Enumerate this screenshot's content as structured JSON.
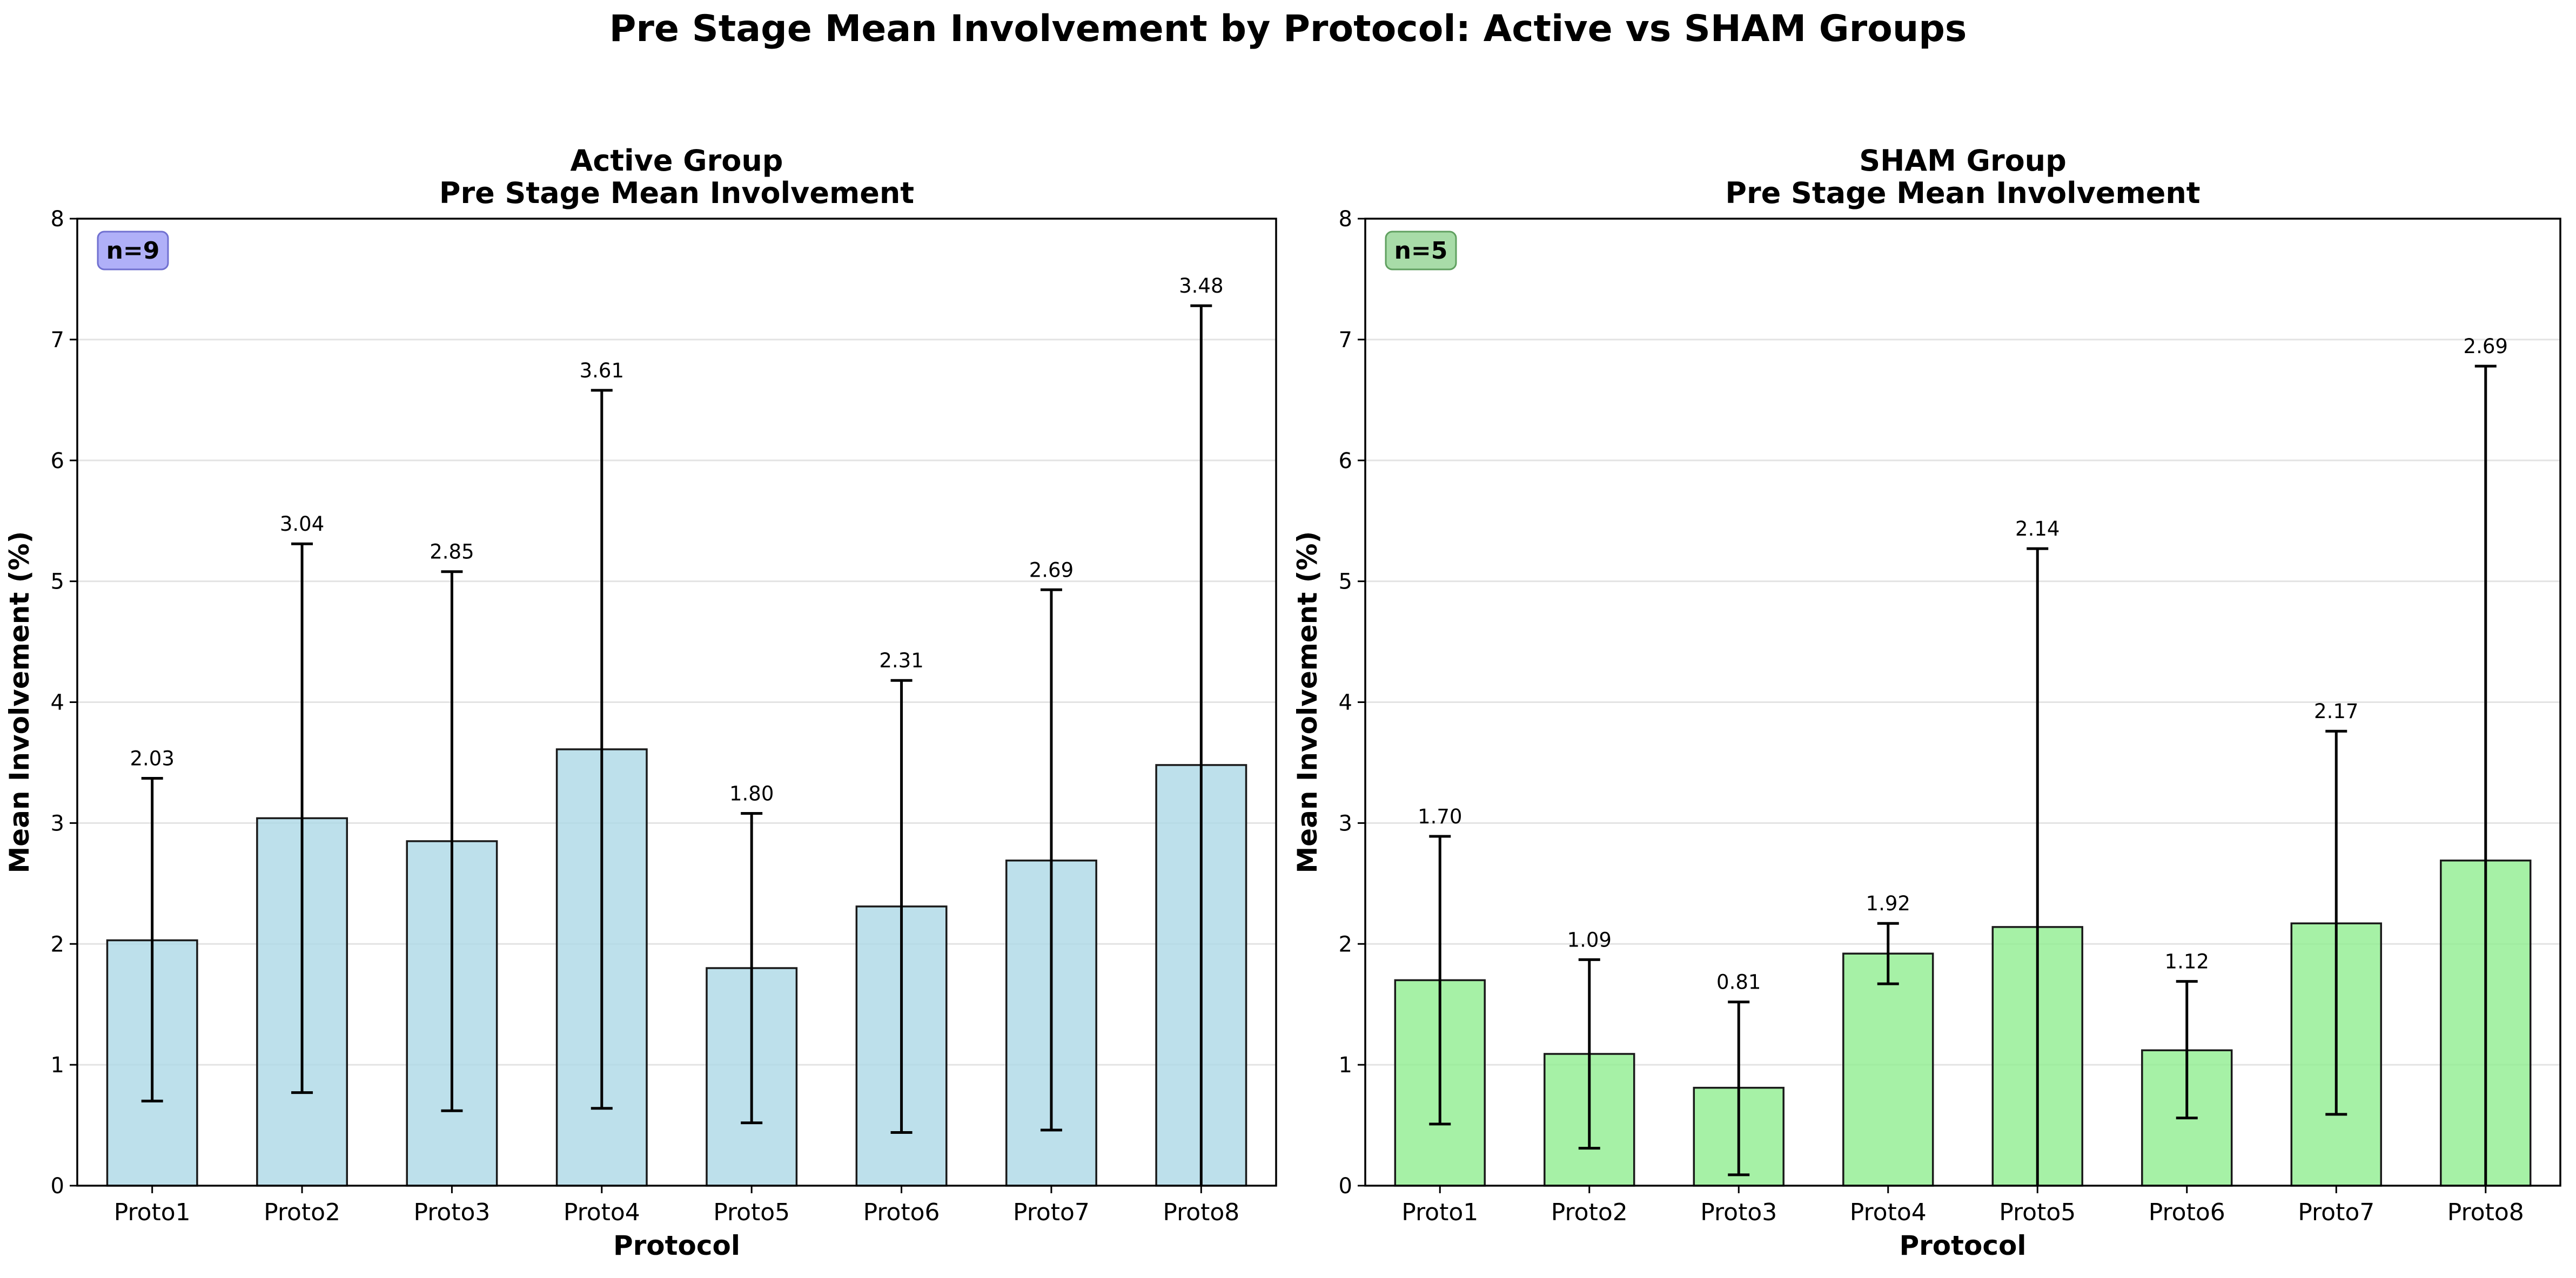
{
  "figure_title": "Pre Stage Mean Involvement by Protocol: Active vs SHAM Groups",
  "chart_data": [
    {
      "type": "bar",
      "title": "Active Group",
      "subtitle": "Pre Stage Mean Involvement",
      "xlabel": "Protocol",
      "ylabel": "Mean Involvement (%)",
      "categories": [
        "Proto1",
        "Proto2",
        "Proto3",
        "Proto4",
        "Proto5",
        "Proto6",
        "Proto7",
        "Proto8"
      ],
      "values": [
        2.03,
        3.04,
        2.85,
        3.61,
        1.8,
        2.31,
        2.69,
        3.48
      ],
      "value_labels": [
        "2.03",
        "3.04",
        "2.85",
        "3.61",
        "1.80",
        "2.31",
        "2.69",
        "3.48"
      ],
      "error_low": [
        0.7,
        0.77,
        0.62,
        0.64,
        0.52,
        0.44,
        0.46,
        0.0
      ],
      "error_high": [
        3.37,
        5.31,
        5.08,
        6.58,
        3.08,
        4.18,
        4.93,
        7.28
      ],
      "ylim": [
        0,
        8
      ],
      "yticks": [
        "0",
        "1",
        "2",
        "3",
        "4",
        "5",
        "6",
        "7",
        "8"
      ],
      "grid": "horizontal",
      "bar_color": "#add8e6",
      "n_label": "n=9",
      "n_badge_color": "#b0b0f8",
      "n_badge_border": "#7070d0"
    },
    {
      "type": "bar",
      "title": "SHAM Group",
      "subtitle": "Pre Stage Mean Involvement",
      "xlabel": "Protocol",
      "ylabel": "Mean Involvement (%)",
      "categories": [
        "Proto1",
        "Proto2",
        "Proto3",
        "Proto4",
        "Proto5",
        "Proto6",
        "Proto7",
        "Proto8"
      ],
      "values": [
        1.7,
        1.09,
        0.81,
        1.92,
        2.14,
        1.12,
        2.17,
        2.69
      ],
      "value_labels": [
        "1.70",
        "1.09",
        "0.81",
        "1.92",
        "2.14",
        "1.12",
        "2.17",
        "2.69"
      ],
      "error_low": [
        0.51,
        0.31,
        0.09,
        1.67,
        0.0,
        0.56,
        0.59,
        0.0
      ],
      "error_high": [
        2.89,
        1.87,
        1.52,
        2.17,
        5.27,
        1.69,
        3.76,
        6.78
      ],
      "ylim": [
        0,
        8
      ],
      "yticks": [
        "0",
        "1",
        "2",
        "3",
        "4",
        "5",
        "6",
        "7",
        "8"
      ],
      "grid": "horizontal",
      "bar_color": "#90ee90",
      "n_label": "n=5",
      "n_badge_color": "#a8dca8",
      "n_badge_border": "#60a060"
    }
  ]
}
